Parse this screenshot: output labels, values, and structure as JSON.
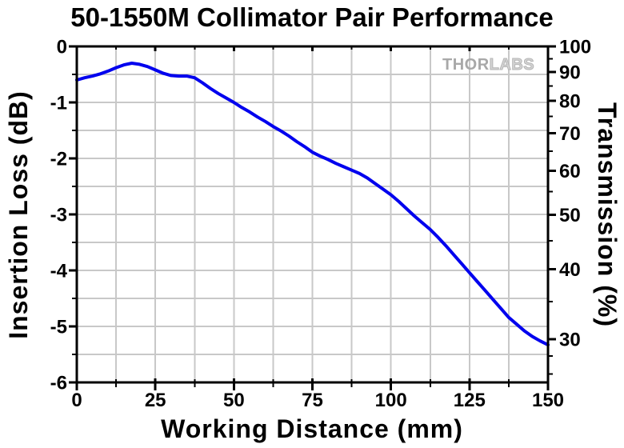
{
  "watermark": {
    "prefix": "THOR",
    "suffix": "LABS"
  },
  "chart_data": {
    "type": "line",
    "title": "50-1550M Collimator Pair Performance",
    "xlabel": "Working Distance (mm)",
    "ylabel": "Insertion Loss (dB)",
    "y2label": "Transmission (%)",
    "xlim": [
      0,
      150
    ],
    "ylim": [
      0,
      -6
    ],
    "grid": true,
    "legend": "none",
    "x_ticks": {
      "major": [
        0,
        25,
        50,
        75,
        100,
        125,
        150
      ],
      "minor": [
        12.5,
        37.5,
        62.5,
        87.5,
        112.5,
        137.5
      ]
    },
    "y_ticks": {
      "major": [
        0,
        -1,
        -2,
        -3,
        -4,
        -5,
        -6
      ],
      "minor": [
        -0.5,
        -1.5,
        -2.5,
        -3.5,
        -4.5,
        -5.5
      ]
    },
    "y2_ticks": {
      "major": [
        100,
        90,
        80,
        70,
        60,
        50,
        40,
        30
      ],
      "minor": [
        95,
        85,
        75,
        65,
        55,
        45,
        35,
        28,
        26
      ],
      "mapping": "percent = 100 * 10^(insertion_loss_dB/10)"
    },
    "colors": {
      "curve": "#0000EE",
      "grid": "#C8C8C8",
      "axis": "#000000",
      "background": "#FFFFFF",
      "watermark_solid": "#A8A8A8",
      "watermark_outline": "#B5B5B5"
    },
    "series": [
      {
        "name": "Insertion Loss",
        "color": "#0000EE",
        "points_mm_dB": [
          [
            0,
            -0.6
          ],
          [
            2.5,
            -0.56
          ],
          [
            5,
            -0.53
          ],
          [
            7.5,
            -0.49
          ],
          [
            10,
            -0.44
          ],
          [
            12.5,
            -0.38
          ],
          [
            15,
            -0.33
          ],
          [
            17.5,
            -0.3
          ],
          [
            20,
            -0.32
          ],
          [
            22.5,
            -0.36
          ],
          [
            25,
            -0.42
          ],
          [
            27.5,
            -0.48
          ],
          [
            30,
            -0.52
          ],
          [
            32.5,
            -0.53
          ],
          [
            35,
            -0.53
          ],
          [
            37.5,
            -0.56
          ],
          [
            40,
            -0.65
          ],
          [
            42.5,
            -0.75
          ],
          [
            45,
            -0.84
          ],
          [
            47.5,
            -0.92
          ],
          [
            50,
            -1.0
          ],
          [
            52.5,
            -1.09
          ],
          [
            55,
            -1.17
          ],
          [
            57.5,
            -1.26
          ],
          [
            60,
            -1.34
          ],
          [
            62.5,
            -1.43
          ],
          [
            65,
            -1.51
          ],
          [
            67.5,
            -1.6
          ],
          [
            70,
            -1.7
          ],
          [
            72.5,
            -1.79
          ],
          [
            75,
            -1.89
          ],
          [
            77.5,
            -1.96
          ],
          [
            80,
            -2.02
          ],
          [
            82.5,
            -2.09
          ],
          [
            85,
            -2.15
          ],
          [
            87.5,
            -2.21
          ],
          [
            90,
            -2.27
          ],
          [
            92.5,
            -2.35
          ],
          [
            95,
            -2.45
          ],
          [
            97.5,
            -2.55
          ],
          [
            100,
            -2.65
          ],
          [
            102.5,
            -2.77
          ],
          [
            105,
            -2.9
          ],
          [
            107.5,
            -3.03
          ],
          [
            110,
            -3.15
          ],
          [
            112.5,
            -3.27
          ],
          [
            115,
            -3.41
          ],
          [
            117.5,
            -3.56
          ],
          [
            120,
            -3.72
          ],
          [
            122.5,
            -3.88
          ],
          [
            125,
            -4.04
          ],
          [
            127.5,
            -4.2
          ],
          [
            130,
            -4.36
          ],
          [
            132.5,
            -4.52
          ],
          [
            135,
            -4.68
          ],
          [
            137.5,
            -4.84
          ],
          [
            140,
            -4.96
          ],
          [
            142.5,
            -5.08
          ],
          [
            145,
            -5.18
          ],
          [
            147.5,
            -5.26
          ],
          [
            150,
            -5.33
          ]
        ]
      }
    ]
  }
}
